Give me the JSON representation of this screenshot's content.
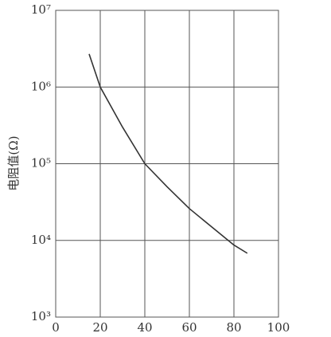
{
  "chart_data": {
    "type": "line",
    "y_label": "电阻值(Ω)",
    "x": [
      15,
      20,
      30,
      40,
      50,
      60,
      70,
      80,
      86
    ],
    "series": [
      {
        "name": "resistance",
        "color": "#333333",
        "values": [
          2700000,
          1000000,
          300000,
          100000,
          50000,
          26000,
          15000,
          8700,
          6800
        ]
      }
    ],
    "xlim": [
      0,
      100
    ],
    "xticks": [
      0,
      20,
      40,
      60,
      80,
      100
    ],
    "ylim": [
      1000,
      10000000
    ],
    "yticks": [
      {
        "value": 1000,
        "label": "10³"
      },
      {
        "value": 10000,
        "label": "10⁴"
      },
      {
        "value": 100000,
        "label": "10⁵"
      },
      {
        "value": 1000000,
        "label": "10⁶"
      },
      {
        "value": 10000000,
        "label": "10⁷"
      }
    ],
    "log_y": true,
    "grid": true
  }
}
